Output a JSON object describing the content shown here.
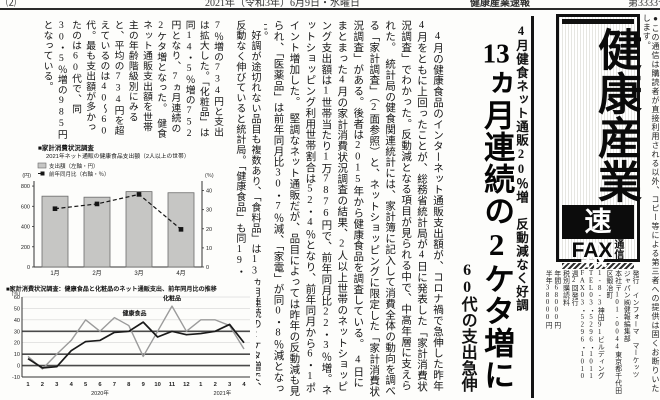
{
  "header": {
    "page_no": "⑵",
    "date": "2021年（令和3年）6月9日・水曜日",
    "publication": "健康産業速報",
    "issue": "第3333号"
  },
  "notice": "●この通信は購読者が直接利用される以外、コピー等による第三者への提供は固くお断りいたします。",
  "masthead": {
    "title": "健康産業",
    "badge": "速報",
    "fax": "FAX",
    "tsushin_top": "通",
    "tsushin_bottom": "信"
  },
  "publisher_block": "発行　インフォーマ　マーケッツ\nジャパン㈱健報編集部\n本社〒101‐0044東京都千代田区鍛冶町\n1‐8‐3神田91ビルディング\nTEL03・5296・1011\nFAX03・5296・1010\n週2回発行\n税別購読料\n年間68000円\n半年38000円",
  "headline": {
    "kicker": "4月健食ネット通販20％増　反動減なく好調",
    "main_num": "13",
    "main_rest": "ヵ月連続の2ケタ増に",
    "sub": "60代の支出急伸"
  },
  "article": {
    "col_main": "　4月の健康食品のインターネット通販支出額が、コロナ禍で急伸した昨年4月をともに上回ったことが、総務省統計局が4日に発表した「家計消費状況調査」でわかった。反動減となる項目が見られる中で、中高年層に支えられた。　統計局の健食関連統計には、家計簿に記入して消費全体の動向を調べる「家計調査」（2面参照）と、ネットショッピングに限定した「家計消費状況調査」がある。後者は2015年から健康食品を調査している。　4日にまとまった4月の家計消費状況調査の結果、2人以上世帯のネットショッピング支出額は1世帯当たり1万7876円で、前年同月比22・3％増。ネットショッピング利用世帯割合は52・4％となり、前年同月から6・1ポイント増加した。　堅調なネット通販だが、品目によっては昨年の反動減も見られ、「医薬品」は前年同月比30・7％減、「家電」が同0・8％減となった。",
    "col_mid": "　好調が途切れない品目も複数あり、「食料品」は13ヵ月連続の2ケタ増で、反動なく伸びていると統計局。「健康食品」も同19・",
    "col_tail": "7％増の734円と支出は拡大した。「化粧品」は同14・5％増の752円となり、7ヵ月連続の2ケタ増となった。　健食ネット通販支出額を世帯主の年齢階級別にみると、平均の734円を超えているのは40〜60代。最も支出額が多かったのは60代で、同30・5％増の985円となっている。"
  },
  "chart_data": [
    {
      "type": "bar",
      "title": "■家計消費状況調査",
      "subtitle": "2021年ネット通販の健康食品支出額（2人以上の世帯）",
      "legend": [
        "支出額（左軸・円）",
        "前年同月比（右軸・％）"
      ],
      "categories": [
        "1月",
        "2月",
        "3月",
        "4月"
      ],
      "series": [
        {
          "name": "支出額",
          "type": "bar",
          "axis": "left",
          "values": [
            700,
            690,
            745,
            734
          ]
        },
        {
          "name": "前年同月比",
          "type": "line",
          "axis": "right",
          "values": [
            30.5,
            33.0,
            38.0,
            19.7
          ]
        }
      ],
      "left_axis": {
        "unit": "(円)",
        "ticks": [
          0,
          200,
          400,
          600,
          800
        ],
        "max": 850
      },
      "right_axis": {
        "unit": "(％)",
        "ticks": [
          0,
          10,
          20,
          30,
          40
        ],
        "max": 45
      },
      "bar_color": "#c6c6c4",
      "line_color": "#151515"
    },
    {
      "type": "line",
      "title": "■家計消費状況調査：健康食品と化粧品のネット通販支出、前年同月比の推移",
      "unit": "(％)",
      "x_labels": [
        "1",
        "2",
        "3",
        "4",
        "5",
        "6",
        "7",
        "8",
        "9",
        "10",
        "11",
        "12",
        "1",
        "2",
        "3",
        "4"
      ],
      "x_group_labels": [
        {
          "label": "2020年",
          "index": 5
        },
        {
          "label": "2021年",
          "index": 13.5
        }
      ],
      "series": [
        {
          "name": "化粧品",
          "color": "#9b9b9b",
          "values": [
            8,
            -3,
            10,
            22,
            40,
            30,
            42,
            35,
            8,
            30,
            52,
            30,
            40,
            40,
            35,
            14.5
          ],
          "label_at": 10,
          "label_y": 57
        },
        {
          "name": "健康食品",
          "color": "#1a1a1a",
          "values": [
            6,
            -2,
            -1,
            13,
            21,
            22,
            29,
            30,
            38,
            25,
            30,
            27,
            28,
            30,
            36,
            20
          ],
          "label_at": 7.4,
          "label_y": 44
        }
      ],
      "y_ticks": [
        -10,
        0,
        10,
        20,
        30,
        40,
        50,
        60
      ],
      "ylim": [
        -10,
        60
      ],
      "emphasized_gridlines": [
        0,
        10,
        30
      ]
    }
  ]
}
